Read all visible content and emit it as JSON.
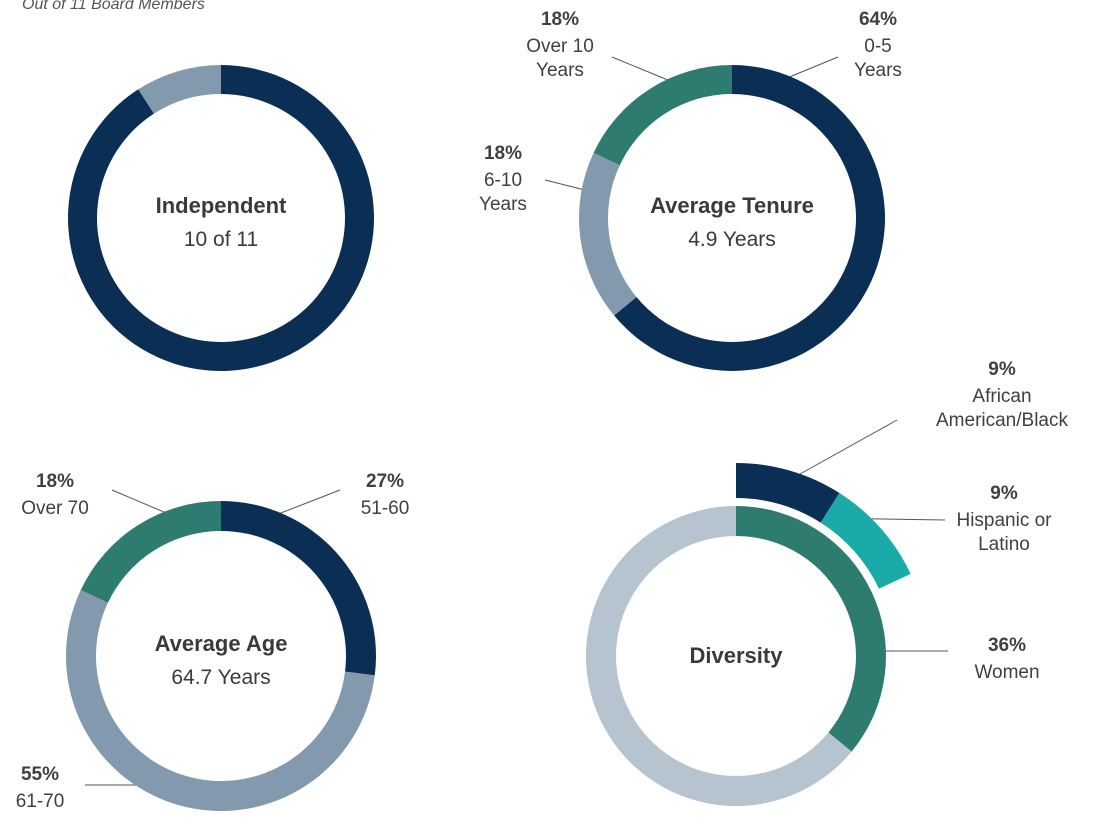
{
  "chart_data": [
    {
      "type": "pie",
      "subtitle": "Out of 11 Board Members",
      "title": "Independent",
      "center_label": "10 of 11",
      "categories": [
        null,
        null
      ],
      "values": [
        10,
        1
      ],
      "colors": [
        "#0b2f54",
        "#8399ad"
      ]
    },
    {
      "type": "pie",
      "title": "Average Tenure",
      "center_label": "4.9 Years",
      "categories": [
        "0-5 Years",
        "6-10 Years",
        "Over 10 Years"
      ],
      "values": [
        64,
        18,
        18
      ],
      "value_labels": [
        "64%",
        "18%",
        "18%"
      ],
      "colors": [
        "#0b2f54",
        "#8399ad",
        "#2e7b6f"
      ]
    },
    {
      "type": "pie",
      "title": "Average Age",
      "center_label": "64.7 Years",
      "categories": [
        "51-60",
        "61-70",
        "Over 70"
      ],
      "values": [
        27,
        55,
        18
      ],
      "value_labels": [
        "27%",
        "55%",
        "18%"
      ],
      "colors": [
        "#0b2f54",
        "#8399ad",
        "#2e7b6f"
      ]
    },
    {
      "type": "pie",
      "title": "Diversity",
      "categories": [
        "Women",
        null
      ],
      "values": [
        36,
        64
      ],
      "value_labels": [
        "36%",
        null
      ],
      "colors": [
        "#2e7b6f",
        "#b6c4d0"
      ],
      "outer": {
        "categories": [
          "African American/Black",
          "Hispanic or Latino"
        ],
        "values": [
          9,
          9
        ],
        "value_labels": [
          "9%",
          "9%"
        ],
        "colors": [
          "#0b2f54",
          "#1aaba8"
        ]
      }
    }
  ]
}
